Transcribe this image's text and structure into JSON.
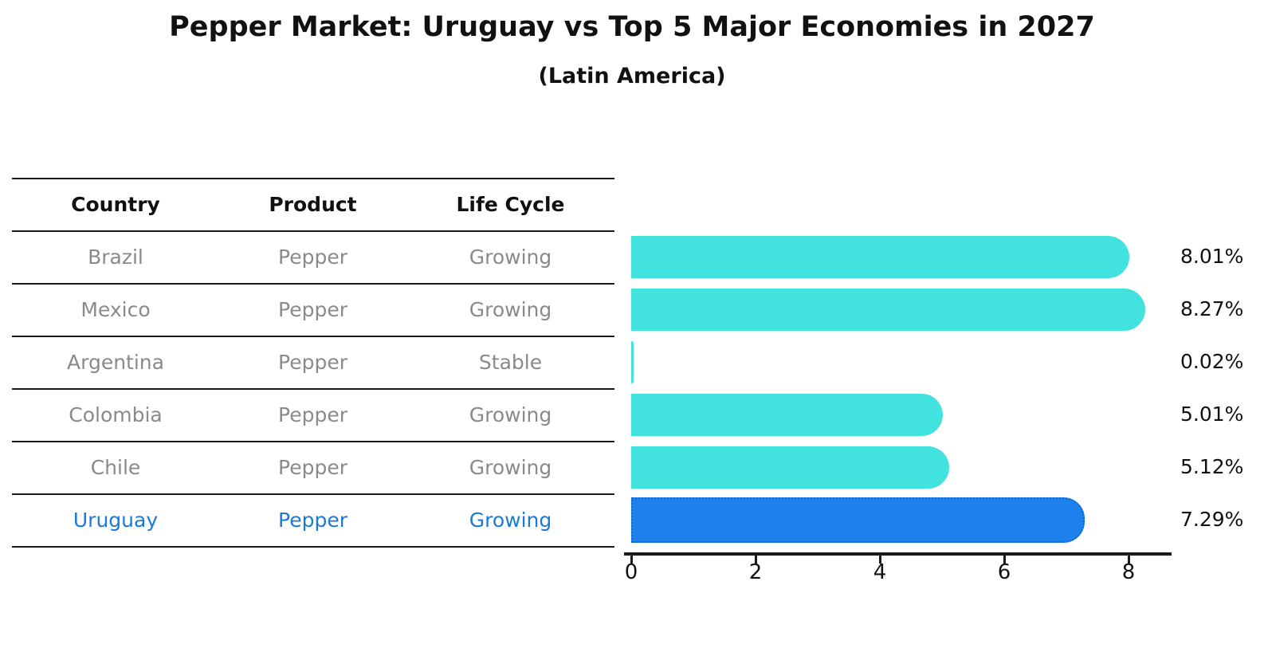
{
  "title": "Pepper Market: Uruguay vs Top 5 Major Economies in 2027",
  "subtitle": "(Latin America)",
  "table": {
    "headers": [
      "Country",
      "Product",
      "Life Cycle"
    ],
    "rows": [
      {
        "country": "Brazil",
        "product": "Pepper",
        "life_cycle": "Growing"
      },
      {
        "country": "Mexico",
        "product": "Pepper",
        "life_cycle": "Growing"
      },
      {
        "country": "Argentina",
        "product": "Pepper",
        "life_cycle": "Stable"
      },
      {
        "country": "Colombia",
        "product": "Pepper",
        "life_cycle": "Growing"
      },
      {
        "country": "Chile",
        "product": "Pepper",
        "life_cycle": "Growing"
      },
      {
        "country": "Uruguay",
        "product": "Pepper",
        "life_cycle": "Growing"
      }
    ],
    "highlight_row": "Uruguay"
  },
  "chart_data": {
    "type": "bar",
    "orientation": "horizontal",
    "title": "Pepper Market: Uruguay vs Top 5 Major Economies in 2027",
    "subtitle": "(Latin America)",
    "categories": [
      "Brazil",
      "Mexico",
      "Argentina",
      "Colombia",
      "Chile",
      "Uruguay"
    ],
    "values": [
      8.01,
      8.27,
      0.02,
      5.01,
      5.12,
      7.29
    ],
    "labels": [
      "8.01%",
      "8.27%",
      "0.02%",
      "5.01%",
      "5.12%",
      "7.29%"
    ],
    "xlabel": "",
    "ylabel": "",
    "xlim": [
      0,
      8.7
    ],
    "xticks": [
      "0",
      "2",
      "4",
      "6",
      "8"
    ],
    "grid": false,
    "legend": false,
    "highlight_index": 5,
    "bar_color": "#42E2DF",
    "highlight_color": "#1E80EC",
    "highlight_border_color": "#0F64CF",
    "text_color": "#111111",
    "muted_text_color": "#8A8A8A",
    "highlight_text_color": "#1B79D8"
  }
}
